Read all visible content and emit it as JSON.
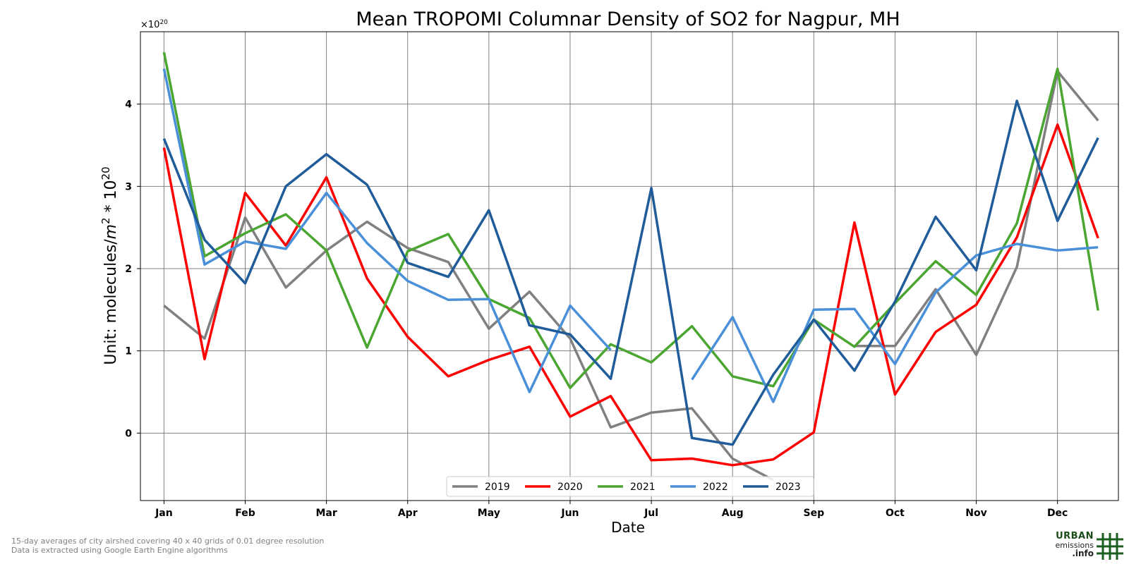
{
  "chart_data": {
    "type": "line",
    "title": "Mean TROPOMI Columnar Density of SO2 for Nagpur, MH",
    "xlabel": "Date",
    "ylabel_prefix": "Unit: molecules/",
    "ylabel_m": "m",
    "ylabel_sup1": "2",
    "ylabel_mid": " * 10",
    "ylabel_sup2": "20",
    "offset_base": "×10",
    "offset_exp": "20",
    "ylim": [
      -0.82,
      4.88
    ],
    "xlim": [
      -0.58,
      23.5
    ],
    "grid": true,
    "legend_placement": "lower-center",
    "x_ticks": [
      {
        "pos": 0,
        "label": "Jan"
      },
      {
        "pos": 2,
        "label": "Feb"
      },
      {
        "pos": 4,
        "label": "Mar"
      },
      {
        "pos": 6,
        "label": "Apr"
      },
      {
        "pos": 8,
        "label": "May"
      },
      {
        "pos": 10,
        "label": "Jun"
      },
      {
        "pos": 12,
        "label": "Jul"
      },
      {
        "pos": 14,
        "label": "Aug"
      },
      {
        "pos": 16,
        "label": "Sep"
      },
      {
        "pos": 18,
        "label": "Oct"
      },
      {
        "pos": 20,
        "label": "Nov"
      },
      {
        "pos": 22,
        "label": "Dec"
      }
    ],
    "y_ticks": [
      {
        "value": 0,
        "label": "0"
      },
      {
        "value": 1,
        "label": "1"
      },
      {
        "value": 2,
        "label": "2"
      },
      {
        "value": 3,
        "label": "3"
      },
      {
        "value": 4,
        "label": "4"
      }
    ],
    "series": [
      {
        "name": "2019",
        "color": "#808080",
        "values": [
          1.55,
          1.15,
          2.62,
          1.77,
          2.22,
          2.57,
          2.25,
          2.08,
          1.27,
          1.72,
          1.15,
          0.07,
          0.25,
          0.3,
          -0.31,
          -0.57,
          null,
          1.06,
          1.06,
          1.75,
          0.95,
          2.02,
          4.4,
          3.8
        ]
      },
      {
        "name": "2020",
        "color": "#ff0000",
        "values": [
          3.47,
          0.9,
          2.92,
          2.28,
          3.11,
          1.88,
          1.17,
          0.69,
          0.89,
          1.05,
          0.2,
          0.45,
          -0.33,
          -0.31,
          -0.39,
          -0.32,
          0.01,
          2.56,
          0.47,
          1.23,
          1.56,
          2.38,
          3.75,
          2.37
        ]
      },
      {
        "name": "2021",
        "color": "#4aa531",
        "values": [
          4.63,
          2.15,
          2.43,
          2.66,
          2.22,
          1.04,
          2.21,
          2.42,
          1.63,
          1.4,
          0.55,
          1.08,
          0.86,
          1.3,
          0.69,
          0.57,
          1.38,
          1.05,
          1.58,
          2.09,
          1.68,
          2.55,
          4.43,
          1.49
        ]
      },
      {
        "name": "2022",
        "color": "#4a90d9",
        "values": [
          4.43,
          2.05,
          2.33,
          2.24,
          2.92,
          2.31,
          1.85,
          1.62,
          1.63,
          0.5,
          1.55,
          1.01,
          null,
          0.65,
          1.41,
          0.38,
          1.5,
          1.51,
          0.84,
          1.71,
          2.16,
          2.3,
          2.22,
          2.26
        ]
      },
      {
        "name": "2023",
        "color": "#1f5c99",
        "values": [
          3.58,
          2.35,
          1.82,
          3.0,
          3.39,
          3.02,
          2.07,
          1.9,
          2.71,
          1.31,
          1.2,
          0.66,
          2.98,
          -0.06,
          -0.14,
          0.71,
          1.38,
          0.76,
          1.6,
          2.63,
          1.98,
          4.04,
          2.58,
          3.59
        ]
      }
    ]
  },
  "footnote": {
    "line1": "15-day averages of city airshed covering 40 x 40 grids of 0.01 degree resolution",
    "line2": "Data is extracted using Google Earth Engine algorithms"
  },
  "logo": {
    "line1": "URBAN",
    "line2": "emissions",
    "line3": ".info"
  }
}
